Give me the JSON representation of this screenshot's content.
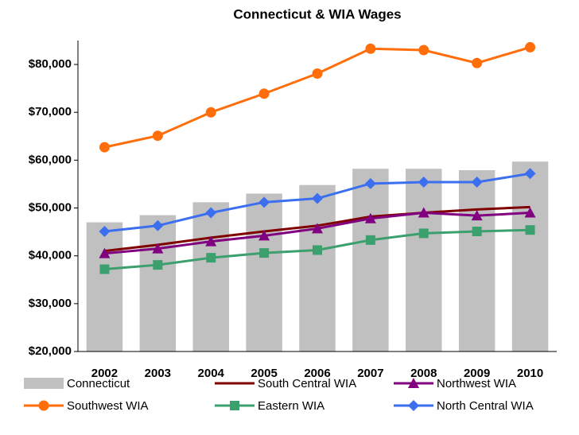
{
  "chart_data": {
    "type": "bar-line",
    "title": "Connecticut & WIA Wages",
    "categories": [
      "2002",
      "2003",
      "2004",
      "2005",
      "2006",
      "2007",
      "2008",
      "2009",
      "2010"
    ],
    "ylim": [
      20000,
      85000
    ],
    "yticks": [
      {
        "value": 20000,
        "label": "$20,000"
      },
      {
        "value": 30000,
        "label": "$30,000"
      },
      {
        "value": 40000,
        "label": "$40,000"
      },
      {
        "value": 50000,
        "label": "$50,000"
      },
      {
        "value": 60000,
        "label": "$60,000"
      },
      {
        "value": 70000,
        "label": "$70,000"
      },
      {
        "value": 80000,
        "label": "$80,000"
      }
    ],
    "legend": "bottom",
    "series": [
      {
        "name": "Connecticut",
        "kind": "bar",
        "color": "#c0c0c0",
        "values": [
          47000,
          48500,
          51200,
          53000,
          54800,
          58200,
          58200,
          57900,
          59700
        ]
      },
      {
        "name": "South Central WIA",
        "kind": "line",
        "marker": "none",
        "color": "#800000",
        "values": [
          41000,
          42300,
          43800,
          45100,
          46300,
          48200,
          49000,
          49700,
          50200
        ]
      },
      {
        "name": "Northwest WIA",
        "kind": "line",
        "marker": "triangle",
        "color": "#800080",
        "values": [
          40500,
          41500,
          43000,
          44200,
          45700,
          47800,
          49000,
          48400,
          49000
        ]
      },
      {
        "name": "Southwest WIA",
        "kind": "line",
        "marker": "circle",
        "color": "#ff6e0a",
        "values": [
          62700,
          65100,
          70000,
          73900,
          78100,
          83300,
          83000,
          80300,
          83600
        ]
      },
      {
        "name": "Eastern WIA",
        "kind": "line",
        "marker": "square",
        "color": "#3ca06e",
        "values": [
          37200,
          38100,
          39600,
          40600,
          41200,
          43300,
          44700,
          45100,
          45400
        ]
      },
      {
        "name": "North Central WIA",
        "kind": "line",
        "marker": "diamond",
        "color": "#3c6ef0",
        "values": [
          45100,
          46300,
          49000,
          51200,
          52000,
          55100,
          55400,
          55400,
          57200
        ]
      }
    ]
  }
}
